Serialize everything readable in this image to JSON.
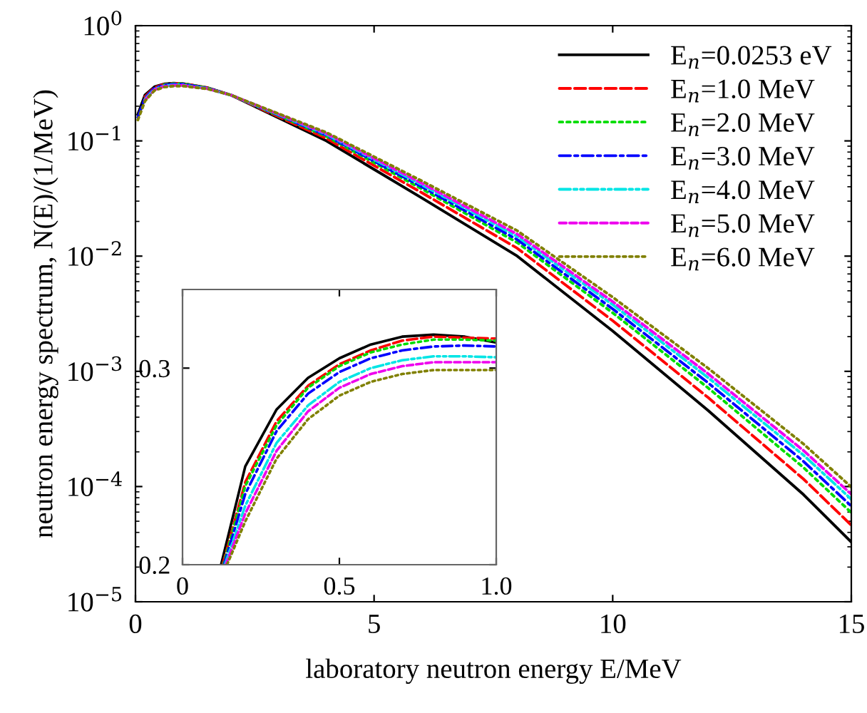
{
  "chart_data": [
    {
      "type": "line",
      "xlabel": "laboratory neutron energy E/MeV",
      "ylabel": "neutron energy spectrum, N(E)/(1/MeV)",
      "log": "y",
      "xlim": [
        0,
        15
      ],
      "xticks": [
        0,
        5,
        10,
        15
      ],
      "ylim": [
        1e-05,
        1
      ],
      "yticks": [
        {
          "value": 1,
          "label": "10$^{0}$"
        },
        {
          "value": 0.1,
          "label": "10$^{−1}$"
        },
        {
          "value": 0.01,
          "label": "10$^{−2}$"
        },
        {
          "value": 0.001,
          "label": "10$^{−3}$"
        },
        {
          "value": 0.0001,
          "label": "10$^{−4}$"
        },
        {
          "value": 1e-05,
          "label": "10$^{−5}$"
        }
      ],
      "grid": false,
      "legend": "top right",
      "x": [
        0.05,
        0.2,
        0.4,
        0.6,
        0.8,
        1.0,
        1.5,
        2,
        4,
        6,
        8,
        10,
        12,
        14,
        15
      ],
      "series": [
        {
          "name": "E$_{n}$=0.0253 eV",
          "color": "#000000",
          "line_style": "solid",
          "values": [
            0.17,
            0.25,
            0.295,
            0.312,
            0.317,
            0.313,
            0.29,
            0.25,
            0.1,
            0.032,
            0.01,
            0.00224,
            0.000457,
            8.5e-05,
            3.3e-05
          ]
        },
        {
          "name": "E$_{n}$=1.0 MeV",
          "color": "#ff0000",
          "line_style": "dashed",
          "values": [
            null,
            0.242,
            0.291,
            0.309,
            0.316,
            0.315,
            0.289,
            0.25,
            0.105,
            0.0355,
            0.0117,
            0.00275,
            0.000592,
            0.000116,
            4.62e-05
          ]
        },
        {
          "name": "E$_{n}$=2.0 MeV",
          "color": "#00dd00",
          "line_style": "dotted",
          "values": [
            null,
            null,
            null,
            0.308,
            0.3145,
            0.314,
            0.288,
            0.25,
            0.1095,
            0.0383,
            0.0131,
            0.00322,
            0.000718,
            0.000146,
            5.94e-05
          ]
        },
        {
          "name": "E$_{n}$=3.0 MeV",
          "color": "#0000ff",
          "line_style": "dashdot",
          "values": [
            0.16,
            0.236,
            0.287,
            0.305,
            0.311,
            0.311,
            0.287,
            0.25,
            0.1117,
            0.0399,
            0.0139,
            0.00348,
            0.000794,
            0.000165,
            6.77e-05
          ]
        },
        {
          "name": "E$_{n}$=4.0 MeV",
          "color": "#00e5e5",
          "line_style": "dashdotdot",
          "values": [
            null,
            0.23,
            0.281,
            0.3,
            0.306,
            0.3055,
            0.285,
            0.25,
            0.1141,
            0.0416,
            0.0148,
            0.00379,
            0.000881,
            0.000187,
            7.76e-05
          ]
        },
        {
          "name": "E$_{n}$=5.0 MeV",
          "color": "#ee00ee",
          "line_style": "shortdash",
          "values": [
            null,
            0.226,
            0.278,
            0.297,
            0.303,
            0.303,
            0.284,
            0.25,
            0.1159,
            0.0429,
            0.0155,
            0.00403,
            0.000953,
            0.000205,
            8.58e-05
          ]
        },
        {
          "name": "E$_{n}$=6.0 MeV",
          "color": "#808000",
          "line_style": "densedot",
          "values": [
            0.152,
            0.222,
            0.274,
            0.293,
            0.299,
            0.299,
            0.283,
            0.25,
            0.1184,
            0.0449,
            0.0166,
            0.0044,
            0.001064,
            0.000234,
            9.9e-05
          ]
        }
      ]
    },
    {
      "type": "line",
      "xlim": [
        0,
        1.0
      ],
      "xticks": [
        0,
        0.5,
        {
          "value": 1.0,
          "label": "1.0"
        }
      ],
      "ylim": [
        0.2,
        0.34
      ],
      "yticks": [
        0.2,
        0.3
      ],
      "grid": false,
      "series": [
        {
          "color": "#000000",
          "line_style": "solid",
          "x": [
            0.123,
            0.2,
            0.3,
            0.4,
            0.5,
            0.6,
            0.7,
            0.8,
            0.9,
            1.0
          ],
          "values": [
            0.2,
            0.25,
            0.279,
            0.295,
            0.305,
            0.312,
            0.316,
            0.317,
            0.316,
            0.313
          ]
        },
        {
          "color": "#ff0000",
          "line_style": "dashed",
          "x": [
            0.128,
            0.2,
            0.3,
            0.4,
            0.5,
            0.6,
            0.7,
            0.8,
            0.9,
            1.0
          ],
          "values": [
            0.2,
            0.242,
            0.273,
            0.291,
            0.302,
            0.309,
            0.314,
            0.316,
            0.3155,
            0.315
          ]
        },
        {
          "color": "#00dd00",
          "line_style": "dotted",
          "x": [
            0.13,
            0.2,
            0.3,
            0.4,
            0.5,
            0.6,
            0.7,
            0.8,
            0.9,
            1.0
          ],
          "values": [
            0.2,
            0.24,
            0.271,
            0.29,
            0.301,
            0.308,
            0.312,
            0.3145,
            0.3145,
            0.314
          ]
        },
        {
          "color": "#0000ff",
          "line_style": "dashdot",
          "x": [
            0.132,
            0.2,
            0.3,
            0.4,
            0.5,
            0.6,
            0.7,
            0.8,
            0.9,
            1.0
          ],
          "values": [
            0.2,
            0.236,
            0.268,
            0.287,
            0.298,
            0.305,
            0.309,
            0.311,
            0.3115,
            0.311
          ]
        },
        {
          "color": "#00e5e5",
          "line_style": "dashdotdot",
          "x": [
            0.135,
            0.2,
            0.3,
            0.4,
            0.5,
            0.6,
            0.7,
            0.8,
            0.9,
            1.0
          ],
          "values": [
            0.2,
            0.23,
            0.262,
            0.281,
            0.293,
            0.3,
            0.304,
            0.306,
            0.306,
            0.3055
          ]
        },
        {
          "color": "#ee00ee",
          "line_style": "shortdash",
          "x": [
            0.138,
            0.2,
            0.3,
            0.4,
            0.5,
            0.6,
            0.7,
            0.8,
            0.9,
            1.0
          ],
          "values": [
            0.2,
            0.226,
            0.258,
            0.278,
            0.29,
            0.297,
            0.301,
            0.303,
            0.303,
            0.303
          ]
        },
        {
          "color": "#808000",
          "line_style": "densedot",
          "x": [
            0.142,
            0.2,
            0.3,
            0.4,
            0.5,
            0.6,
            0.7,
            0.8,
            0.9,
            1.0
          ],
          "values": [
            0.2,
            0.222,
            0.254,
            0.274,
            0.286,
            0.293,
            0.297,
            0.299,
            0.299,
            0.299
          ]
        }
      ]
    }
  ]
}
